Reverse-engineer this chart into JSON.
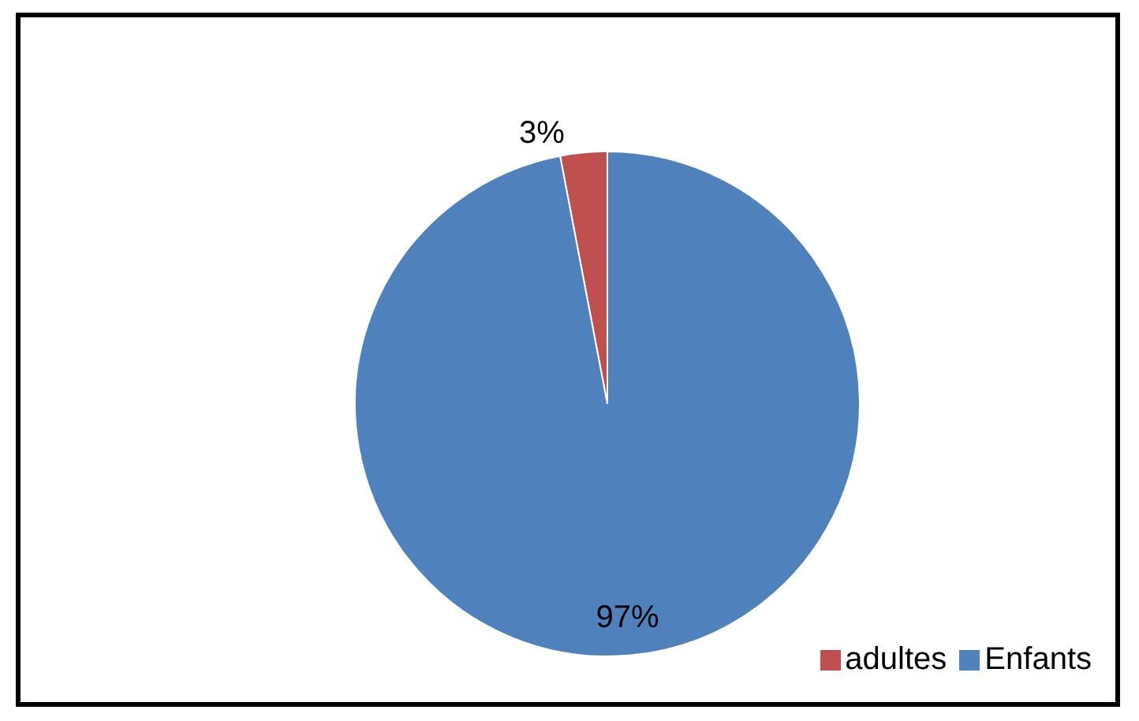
{
  "chart_data": {
    "type": "pie",
    "categories": [
      "adultes",
      "Enfants"
    ],
    "values": [
      3,
      97
    ],
    "colors": [
      "#c0504d",
      "#4f81bd"
    ],
    "value_labels": [
      "3%",
      "97%"
    ],
    "legend": "bottom right"
  }
}
